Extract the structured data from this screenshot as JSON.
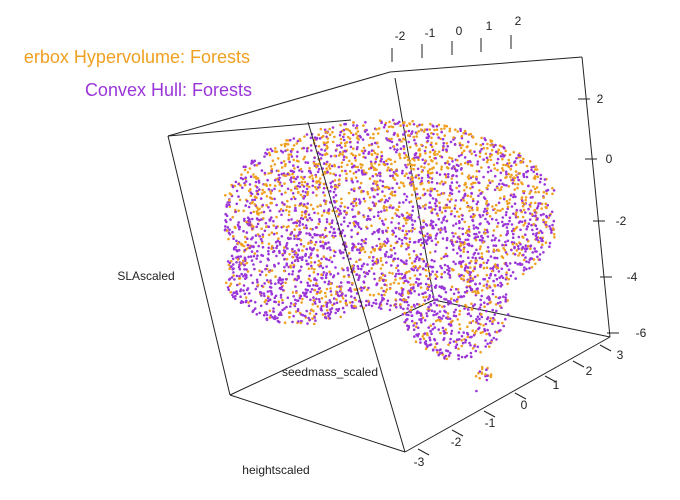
{
  "chart_data": {
    "type": "scatter",
    "subtype": "3d-scatter",
    "series": [
      {
        "name": "Hyperbox Hypervolume: Forests",
        "color": "#f0a020"
      },
      {
        "name": "Convex Hull: Forests",
        "color": "#9a35d9"
      }
    ],
    "legend_visible_text": [
      "erbox Hypervolume: Forests",
      "Convex Hull: Forests"
    ],
    "axes": {
      "x": {
        "label": "heightscaled",
        "ticks": [
          "-3",
          "-2",
          "-1",
          "0",
          "1",
          "2",
          "3"
        ]
      },
      "y": {
        "label": "seedmass_scaled",
        "ticks": [
          "-2",
          "-1",
          "0",
          "1",
          "2"
        ]
      },
      "z": {
        "label": "SLAscaled",
        "ticks": [
          "2",
          "0",
          "-2",
          "-4",
          "-6"
        ]
      }
    },
    "box": true,
    "grid": false
  }
}
